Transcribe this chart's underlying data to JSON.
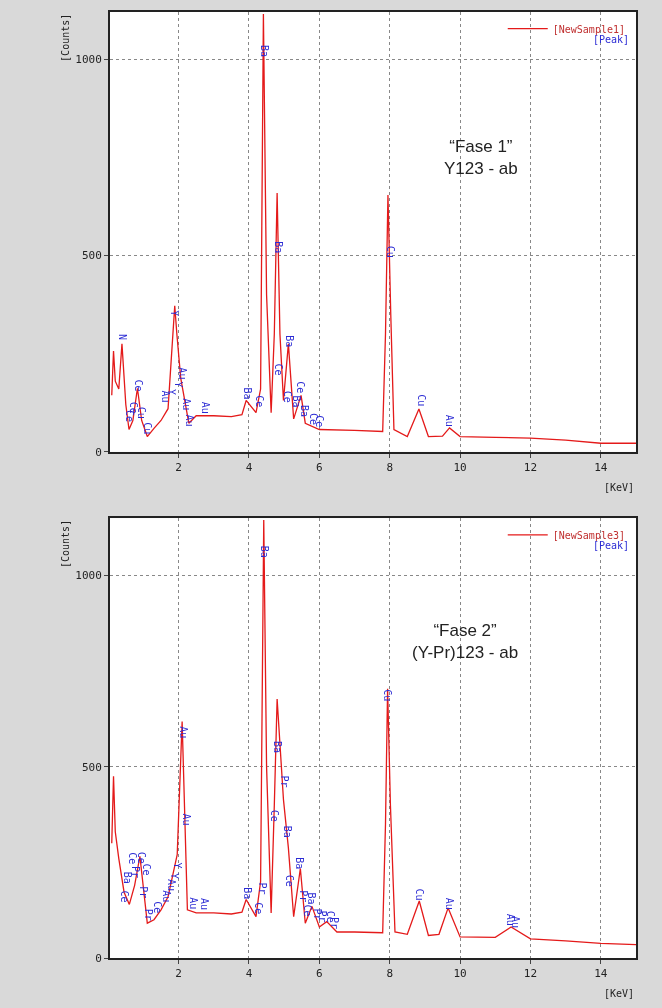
{
  "chart_data": [
    {
      "type": "line",
      "xlabel": "[KeV]",
      "ylabel": "[Counts]",
      "xlim": [
        0.05,
        15
      ],
      "ylim": [
        0,
        1120
      ],
      "xticks": [
        2,
        4,
        6,
        8,
        10,
        12,
        14
      ],
      "yticks": [
        0,
        500,
        1000
      ],
      "grid": true,
      "legend": "top right",
      "marker": "none",
      "line_style": "solid",
      "annotations": [
        "“Fase 1”\nY123 - ab",
        "[Peak]",
        {
          "text": "N",
          "x": 0.39,
          "y": 280
        },
        {
          "text": "Ce",
          "x": 0.6,
          "y": 70
        },
        {
          "text": "Ce",
          "x": 0.72,
          "y": 93
        },
        {
          "text": "Ce",
          "x": 0.86,
          "y": 150
        },
        {
          "text": "Cu",
          "x": 0.95,
          "y": 80
        },
        {
          "text": "Cu",
          "x": 1.11,
          "y": 39
        },
        {
          "text": "Au",
          "x": 1.62,
          "y": 120
        },
        {
          "text": "Y",
          "x": 1.78,
          "y": 140
        },
        {
          "text": "Y",
          "x": 1.9,
          "y": 340
        },
        {
          "text": "Y",
          "x": 2.0,
          "y": 160
        },
        {
          "text": "Au",
          "x": 2.12,
          "y": 180
        },
        {
          "text": "Au",
          "x": 2.22,
          "y": 100
        },
        {
          "text": "Au",
          "x": 2.32,
          "y": 60
        },
        {
          "text": "Au",
          "x": 2.75,
          "y": 92
        },
        {
          "text": "Ba",
          "x": 3.95,
          "y": 128
        },
        {
          "text": "Ce",
          "x": 4.3,
          "y": 110
        },
        {
          "text": "Ba",
          "x": 4.46,
          "y": 1000
        },
        {
          "text": "Ba",
          "x": 4.83,
          "y": 500
        },
        {
          "text": "Ce",
          "x": 4.85,
          "y": 190
        },
        {
          "text": "Ce",
          "x": 5.08,
          "y": 120
        },
        {
          "text": "Ba",
          "x": 5.15,
          "y": 260
        },
        {
          "text": "Ba",
          "x": 5.35,
          "y": 107
        },
        {
          "text": "Ce",
          "x": 5.48,
          "y": 144
        },
        {
          "text": "Ba",
          "x": 5.58,
          "y": 85
        },
        {
          "text": "Ce",
          "x": 5.85,
          "y": 63
        },
        {
          "text": "Ce",
          "x": 6.0,
          "y": 57
        },
        {
          "text": "Cu",
          "x": 8.03,
          "y": 490
        },
        {
          "text": "Cu",
          "x": 8.9,
          "y": 110
        },
        {
          "text": "Au",
          "x": 9.7,
          "y": 60
        }
      ],
      "series": [
        {
          "name": "[NewSample1]",
          "color": "#e41a1a",
          "x": [
            0.1,
            0.15,
            0.2,
            0.3,
            0.39,
            0.5,
            0.59,
            0.7,
            0.83,
            0.95,
            1.11,
            1.3,
            1.5,
            1.7,
            1.89,
            1.95,
            2.06,
            2.29,
            2.5,
            3.0,
            3.5,
            3.8,
            3.92,
            4.2,
            4.33,
            4.41,
            4.5,
            4.63,
            4.72,
            4.8,
            4.88,
            4.98,
            5.12,
            5.27,
            5.48,
            5.6,
            6.0,
            7.0,
            7.8,
            7.88,
            7.95,
            8.03,
            8.12,
            8.5,
            8.83,
            9.1,
            9.5,
            9.7,
            10.0,
            11.0,
            12.0,
            13.0,
            14.0,
            15.0
          ],
          "values": [
            144,
            257,
            180,
            160,
            275,
            120,
            57,
            80,
            162,
            80,
            39,
            60,
            80,
            110,
            372,
            300,
            188,
            73,
            92,
            92,
            90,
            95,
            131,
            100,
            160,
            1115,
            400,
            100,
            300,
            659,
            300,
            131,
            275,
            84,
            144,
            73,
            57,
            55,
            52,
            300,
            654,
            350,
            57,
            39,
            109,
            39,
            40,
            61,
            39,
            37,
            35,
            30,
            22,
            22
          ]
        }
      ]
    },
    {
      "type": "line",
      "xlabel": "[KeV]",
      "ylabel": "[Counts]",
      "xlim": [
        0.05,
        15
      ],
      "ylim": [
        0,
        1150
      ],
      "xticks": [
        2,
        4,
        6,
        8,
        10,
        12,
        14
      ],
      "yticks": [
        0,
        500,
        1000
      ],
      "grid": true,
      "legend": "top right",
      "marker": "none",
      "line_style": "solid",
      "annotations": [
        "“Fase 2”\n(Y-Pr)123 - ab",
        "[Peak]",
        {
          "text": "Ce",
          "x": 0.45,
          "y": 140
        },
        {
          "text": "Ba",
          "x": 0.55,
          "y": 190
        },
        {
          "text": "Ce",
          "x": 0.7,
          "y": 240
        },
        {
          "text": "Pr",
          "x": 0.78,
          "y": 205
        },
        {
          "text": "Ce",
          "x": 0.93,
          "y": 241
        },
        {
          "text": "Pr",
          "x": 1.0,
          "y": 150
        },
        {
          "text": "Ce",
          "x": 1.08,
          "y": 210
        },
        {
          "text": "Pr",
          "x": 1.15,
          "y": 93
        },
        {
          "text": "Ce",
          "x": 1.4,
          "y": 113
        },
        {
          "text": "Au",
          "x": 1.65,
          "y": 140
        },
        {
          "text": "Au",
          "x": 1.78,
          "y": 170
        },
        {
          "text": "Y",
          "x": 1.88,
          "y": 200
        },
        {
          "text": "Y",
          "x": 1.97,
          "y": 230
        },
        {
          "text": "Au",
          "x": 2.12,
          "y": 570
        },
        {
          "text": "Au",
          "x": 2.22,
          "y": 340
        },
        {
          "text": "Au",
          "x": 2.42,
          "y": 121
        },
        {
          "text": "Au",
          "x": 2.75,
          "y": 120
        },
        {
          "text": "Ba",
          "x": 3.95,
          "y": 148
        },
        {
          "text": "Ce",
          "x": 4.25,
          "y": 110
        },
        {
          "text": "Pr",
          "x": 4.38,
          "y": 160
        },
        {
          "text": "Ba",
          "x": 4.44,
          "y": 1040
        },
        {
          "text": "Ce",
          "x": 4.75,
          "y": 350
        },
        {
          "text": "Ba",
          "x": 4.83,
          "y": 530
        },
        {
          "text": "Pr",
          "x": 5.0,
          "y": 440
        },
        {
          "text": "Ba",
          "x": 5.1,
          "y": 310
        },
        {
          "text": "Ce",
          "x": 5.15,
          "y": 180
        },
        {
          "text": "Ba",
          "x": 5.45,
          "y": 227
        },
        {
          "text": "Pr",
          "x": 5.55,
          "y": 142
        },
        {
          "text": "Ce",
          "x": 5.65,
          "y": 103
        },
        {
          "text": "Ba",
          "x": 5.79,
          "y": 135
        },
        {
          "text": "Pr",
          "x": 5.95,
          "y": 94
        },
        {
          "text": "Pr",
          "x": 6.1,
          "y": 88
        },
        {
          "text": "Ce",
          "x": 6.3,
          "y": 87
        },
        {
          "text": "Pr",
          "x": 6.45,
          "y": 70
        },
        {
          "text": "Cu",
          "x": 7.95,
          "y": 666
        },
        {
          "text": "Cu",
          "x": 8.85,
          "y": 146
        },
        {
          "text": "Au",
          "x": 9.7,
          "y": 122
        },
        {
          "text": "Au",
          "x": 11.42,
          "y": 79
        },
        {
          "text": "Au",
          "x": 11.58,
          "y": 74
        }
      ],
      "series": [
        {
          "name": "[NewSample3]",
          "color": "#e41a1a",
          "x": [
            0.1,
            0.15,
            0.2,
            0.3,
            0.45,
            0.6,
            0.75,
            0.9,
            1.11,
            1.3,
            1.5,
            1.7,
            1.96,
            2.1,
            2.25,
            2.5,
            3.0,
            3.5,
            3.8,
            3.92,
            4.2,
            4.33,
            4.42,
            4.5,
            4.63,
            4.72,
            4.8,
            4.98,
            5.12,
            5.27,
            5.46,
            5.6,
            5.79,
            6.0,
            6.21,
            6.5,
            7.0,
            7.8,
            7.88,
            7.94,
            8.02,
            8.15,
            8.5,
            8.84,
            9.1,
            9.4,
            9.66,
            10.0,
            11.0,
            11.45,
            12.0,
            13.0,
            14.0,
            15.0
          ],
          "values": [
            300,
            475,
            330,
            260,
            172,
            140,
            190,
            266,
            91,
            100,
            126,
            160,
            270,
            618,
            126,
            118,
            118,
            115,
            120,
            153,
            108,
            200,
            1145,
            500,
            118,
            400,
            677,
            414,
            288,
            108,
            234,
            91,
            135,
            81,
            95,
            68,
            68,
            66,
            350,
            704,
            400,
            68,
            62,
            149,
            59,
            62,
            131,
            55,
            54,
            81,
            50,
            45,
            38,
            35
          ]
        }
      ]
    }
  ]
}
